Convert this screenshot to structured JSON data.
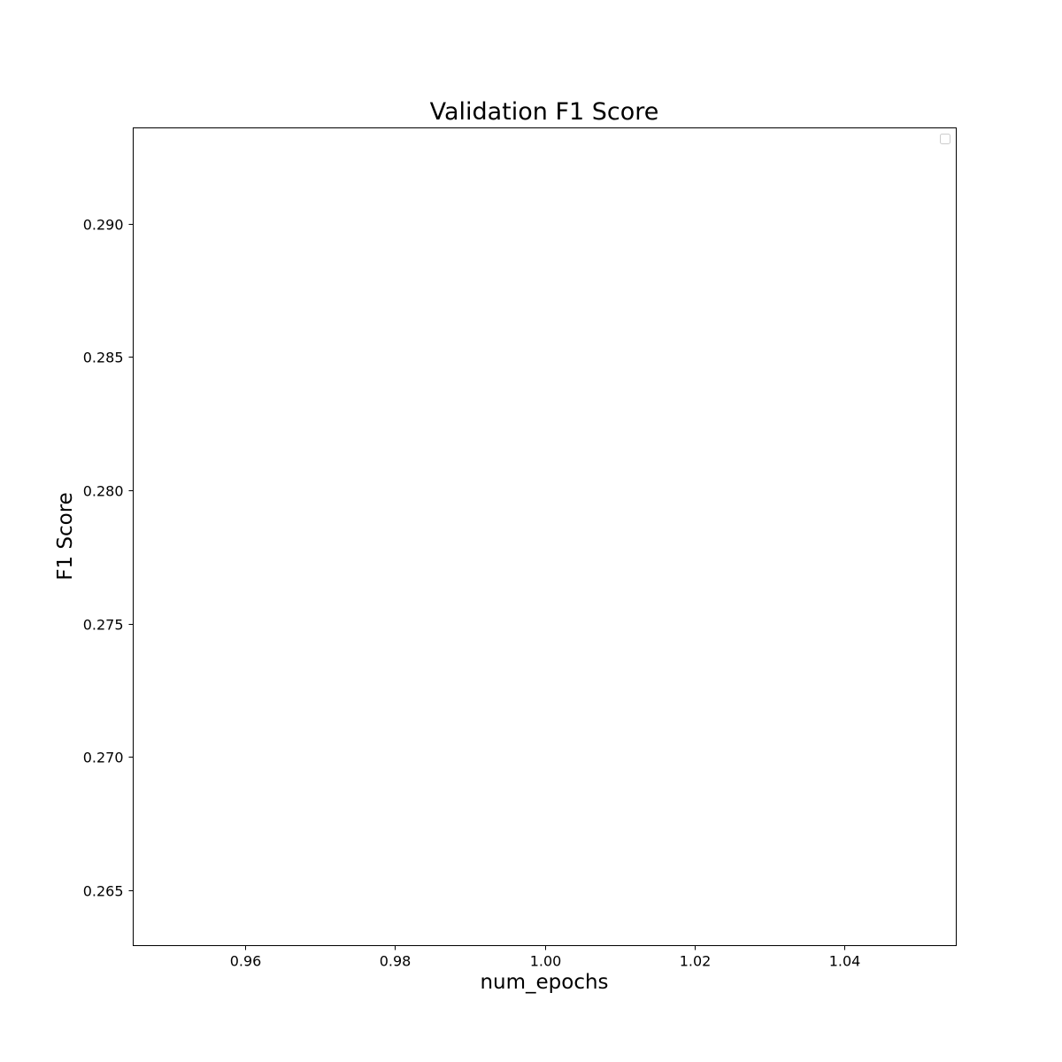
{
  "chart_data": {
    "type": "line",
    "title": "Validation F1 Score",
    "xlabel": "num_epochs",
    "ylabel": "F1 Score",
    "xlim": [
      0.945,
      1.055
    ],
    "ylim": [
      0.26293,
      0.29359
    ],
    "xticks": [
      0.96,
      0.98,
      1.0,
      1.02,
      1.04
    ],
    "xtick_labels": [
      "0.96",
      "0.98",
      "1.00",
      "1.02",
      "1.04"
    ],
    "yticks": [
      0.265,
      0.27,
      0.275,
      0.28,
      0.285,
      0.29
    ],
    "ytick_labels": [
      "0.265",
      "0.270",
      "0.275",
      "0.280",
      "0.285",
      "0.290"
    ],
    "series": [],
    "grid": false,
    "legend": {
      "placement": "upper right",
      "entries": []
    }
  }
}
